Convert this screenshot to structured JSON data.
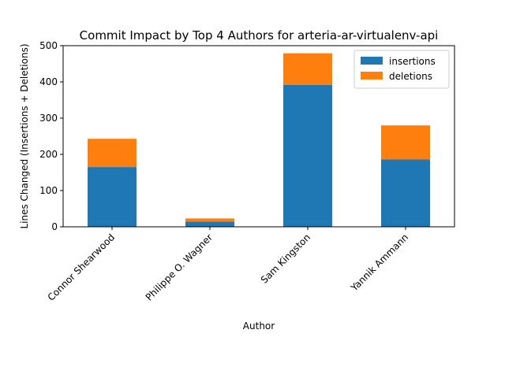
{
  "chart_data": {
    "type": "bar",
    "stacked": true,
    "title": "Commit Impact by Top 4 Authors for arteria-ar-virtualenv-api",
    "xlabel": "Author",
    "ylabel": "Lines Changed (Insertions + Deletions)",
    "categories": [
      "Connor Shearwood",
      "Philippe O. Wagner",
      "Sam Kingston",
      "Yannik Ammann"
    ],
    "series": [
      {
        "name": "insertions",
        "color": "#1f77b4",
        "values": [
          165,
          14,
          392,
          186
        ]
      },
      {
        "name": "deletions",
        "color": "#ff7f0e",
        "values": [
          78,
          9,
          87,
          94
        ]
      }
    ],
    "ylim": [
      0,
      500
    ],
    "yticks": [
      0,
      100,
      200,
      300,
      400,
      500
    ],
    "grid": false,
    "legend_position": "top-right"
  }
}
